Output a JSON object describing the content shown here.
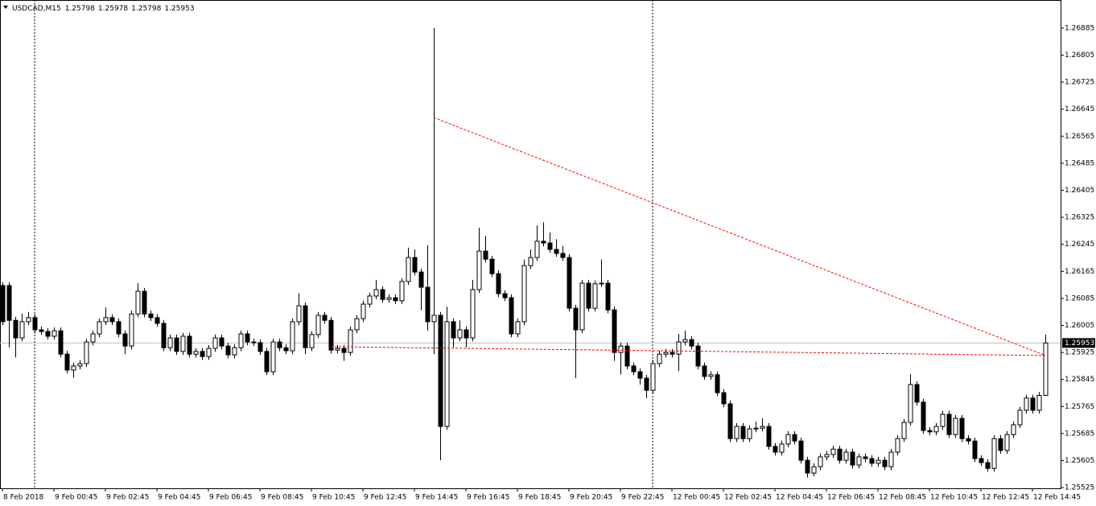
{
  "chart_data": {
    "type": "candlestick",
    "title": "USDCAD,M15",
    "up_color": "#ffffff",
    "down_color": "#000000",
    "edge_color": "#000000",
    "trend_color": "#ff0000",
    "separator_color": "#000000",
    "xlim": [
      -0.375,
      164.375
    ],
    "ylim": [
      1.25523,
      1.26968
    ],
    "yticks": [
      1.26885,
      1.26805,
      1.26725,
      1.26645,
      1.26565,
      1.26485,
      1.26405,
      1.26325,
      1.26245,
      1.26165,
      1.26085,
      1.26005,
      1.25925,
      1.25845,
      1.25765,
      1.25685,
      1.25605,
      1.25525
    ],
    "xticks": [
      {
        "value": 0,
        "label": "8 Feb 2018"
      },
      {
        "value": 8,
        "label": "9 Feb 00:45"
      },
      {
        "value": 16,
        "label": "9 Feb 02:45"
      },
      {
        "value": 24,
        "label": "9 Feb 04:45"
      },
      {
        "value": 32,
        "label": "9 Feb 06:45"
      },
      {
        "value": 40,
        "label": "9 Feb 08:45"
      },
      {
        "value": 48,
        "label": "9 Feb 10:45"
      },
      {
        "value": 56,
        "label": "9 Feb 12:45"
      },
      {
        "value": 64,
        "label": "9 Feb 14:45"
      },
      {
        "value": 72,
        "label": "9 Feb 16:45"
      },
      {
        "value": 80,
        "label": "9 Feb 18:45"
      },
      {
        "value": 88,
        "label": "9 Feb 20:45"
      },
      {
        "value": 96,
        "label": "9 Feb 22:45"
      },
      {
        "value": 104,
        "label": "12 Feb 00:45"
      },
      {
        "value": 112,
        "label": "12 Feb 02:45"
      },
      {
        "value": 120,
        "label": "12 Feb 04:45"
      },
      {
        "value": 128,
        "label": "12 Feb 06:45"
      },
      {
        "value": 136,
        "label": "12 Feb 08:45"
      },
      {
        "value": 144,
        "label": "12 Feb 10:45"
      },
      {
        "value": 152,
        "label": "12 Feb 12:45"
      },
      {
        "value": 160,
        "label": "12 Feb 14:45"
      }
    ],
    "separators": [
      5,
      101
    ],
    "trendlines": [
      {
        "points": [
          [
            67,
            1.2662
          ],
          [
            162,
            1.25916
          ]
        ]
      },
      {
        "points": [
          [
            51,
            1.25942
          ],
          [
            162,
            1.25916
          ]
        ]
      }
    ],
    "candles": [
      [
        1.26123,
        1.26133,
        1.26006,
        1.26016
      ],
      [
        1.26123,
        1.26133,
        1.2594,
        1.2602
      ],
      [
        1.2602,
        1.2603,
        1.2591,
        1.25968
      ],
      [
        1.25968,
        1.2604,
        1.25958,
        1.26016
      ],
      [
        1.26016,
        1.26045,
        1.26006,
        1.26028
      ],
      [
        1.26028,
        1.26038,
        1.25982,
        1.25992
      ],
      [
        1.25992,
        1.26002,
        1.25977,
        1.25987
      ],
      [
        1.25987,
        1.25997,
        1.25963,
        1.25973
      ],
      [
        1.25973,
        1.25999,
        1.25963,
        1.25989
      ],
      [
        1.25989,
        1.25999,
        1.2591,
        1.2592
      ],
      [
        1.2592,
        1.2593,
        1.25863,
        1.25873
      ],
      [
        1.25873,
        1.25895,
        1.2585,
        1.25885
      ],
      [
        1.25885,
        1.25902,
        1.25875,
        1.25892
      ],
      [
        1.25892,
        1.25966,
        1.25882,
        1.25956
      ],
      [
        1.25956,
        1.2599,
        1.25946,
        1.2598
      ],
      [
        1.2598,
        1.26026,
        1.2597,
        1.26016
      ],
      [
        1.26016,
        1.26058,
        1.26006,
        1.26028
      ],
      [
        1.26028,
        1.26038,
        1.26006,
        1.26016
      ],
      [
        1.26016,
        1.26026,
        1.2597,
        1.2598
      ],
      [
        1.2598,
        1.2599,
        1.2592,
        1.25944
      ],
      [
        1.25944,
        1.26049,
        1.25934,
        1.26039
      ],
      [
        1.26039,
        1.2613,
        1.26029,
        1.26106
      ],
      [
        1.26106,
        1.26116,
        1.26029,
        1.26039
      ],
      [
        1.26039,
        1.26049,
        1.26018,
        1.26028
      ],
      [
        1.26028,
        1.26038,
        1.26001,
        1.26011
      ],
      [
        1.26011,
        1.26021,
        1.25929,
        1.25939
      ],
      [
        1.25939,
        1.25978,
        1.25929,
        1.25968
      ],
      [
        1.25968,
        1.25978,
        1.25918,
        1.25928
      ],
      [
        1.25928,
        1.25983,
        1.25918,
        1.25973
      ],
      [
        1.25973,
        1.25983,
        1.2591,
        1.2592
      ],
      [
        1.2592,
        1.25938,
        1.2591,
        1.25928
      ],
      [
        1.25928,
        1.25938,
        1.25903,
        1.25913
      ],
      [
        1.25913,
        1.25947,
        1.25903,
        1.25937
      ],
      [
        1.25937,
        1.25978,
        1.25927,
        1.25968
      ],
      [
        1.25968,
        1.25978,
        1.25934,
        1.25944
      ],
      [
        1.25944,
        1.25954,
        1.25908,
        1.25918
      ],
      [
        1.25918,
        1.25949,
        1.25908,
        1.25939
      ],
      [
        1.25939,
        1.2599,
        1.25929,
        1.2598
      ],
      [
        1.2598,
        1.2599,
        1.25946,
        1.25956
      ],
      [
        1.25956,
        1.25966,
        1.25944,
        1.25954
      ],
      [
        1.25954,
        1.25964,
        1.25918,
        1.25928
      ],
      [
        1.25928,
        1.25938,
        1.25858,
        1.25868
      ],
      [
        1.25868,
        1.25966,
        1.25858,
        1.25956
      ],
      [
        1.25956,
        1.25966,
        1.25929,
        1.25939
      ],
      [
        1.25939,
        1.25949,
        1.2592,
        1.2593
      ],
      [
        1.2593,
        1.26026,
        1.2592,
        1.26016
      ],
      [
        1.26016,
        1.261,
        1.26006,
        1.26063
      ],
      [
        1.26063,
        1.26073,
        1.2592,
        1.25939
      ],
      [
        1.25939,
        1.25988,
        1.25929,
        1.25978
      ],
      [
        1.25978,
        1.26045,
        1.25968,
        1.26035
      ],
      [
        1.26035,
        1.26045,
        1.2601,
        1.2602
      ],
      [
        1.2602,
        1.2603,
        1.25922,
        1.25932
      ],
      [
        1.25932,
        1.25947,
        1.25922,
        1.25937
      ],
      [
        1.25937,
        1.25947,
        1.259,
        1.25925
      ],
      [
        1.25925,
        1.26002,
        1.25915,
        1.25992
      ],
      [
        1.25992,
        1.26035,
        1.25982,
        1.26025
      ],
      [
        1.26025,
        1.26078,
        1.26015,
        1.26068
      ],
      [
        1.26068,
        1.26102,
        1.26058,
        1.26092
      ],
      [
        1.26092,
        1.2614,
        1.26082,
        1.26111
      ],
      [
        1.26111,
        1.26121,
        1.26072,
        1.26082
      ],
      [
        1.26082,
        1.26097,
        1.26072,
        1.26087
      ],
      [
        1.26087,
        1.26097,
        1.26068,
        1.26078
      ],
      [
        1.26078,
        1.26145,
        1.26068,
        1.26135
      ],
      [
        1.26135,
        1.26235,
        1.26125,
        1.26206
      ],
      [
        1.26206,
        1.2623,
        1.26153,
        1.26163
      ],
      [
        1.26163,
        1.26173,
        1.2605,
        1.26118
      ],
      [
        1.26118,
        1.26242,
        1.2599,
        1.26016
      ],
      [
        1.26016,
        1.26885,
        1.2592,
        1.26035
      ],
      [
        1.26035,
        1.26045,
        1.25606,
        1.25706
      ],
      [
        1.25706,
        1.2606,
        1.25696,
        1.26016
      ],
      [
        1.26016,
        1.26026,
        1.2594,
        1.25968
      ],
      [
        1.25968,
        1.2602,
        1.25958,
        1.25992
      ],
      [
        1.25992,
        1.26002,
        1.2594,
        1.25968
      ],
      [
        1.25968,
        1.2614,
        1.25958,
        1.26111
      ],
      [
        1.26111,
        1.26294,
        1.26101,
        1.26225
      ],
      [
        1.26225,
        1.2627,
        1.26191,
        1.26201
      ],
      [
        1.26201,
        1.26211,
        1.26148,
        1.26158
      ],
      [
        1.26158,
        1.26168,
        1.26089,
        1.26099
      ],
      [
        1.26099,
        1.26109,
        1.26077,
        1.26087
      ],
      [
        1.26087,
        1.26097,
        1.2597,
        1.2598
      ],
      [
        1.2598,
        1.26026,
        1.2597,
        1.26016
      ],
      [
        1.26016,
        1.262,
        1.26006,
        1.26182
      ],
      [
        1.26182,
        1.2623,
        1.26172,
        1.26206
      ],
      [
        1.26206,
        1.26301,
        1.26196,
        1.26254
      ],
      [
        1.26254,
        1.2631,
        1.26239,
        1.26249
      ],
      [
        1.26249,
        1.2628,
        1.2622,
        1.2623
      ],
      [
        1.2623,
        1.2626,
        1.26208,
        1.26218
      ],
      [
        1.26218,
        1.2624,
        1.26196,
        1.26206
      ],
      [
        1.26206,
        1.26216,
        1.26046,
        1.26056
      ],
      [
        1.26056,
        1.26066,
        1.25849,
        1.25992
      ],
      [
        1.25992,
        1.2614,
        1.25982,
        1.2613
      ],
      [
        1.2613,
        1.2614,
        1.26046,
        1.26056
      ],
      [
        1.26056,
        1.26138,
        1.26046,
        1.26128
      ],
      [
        1.26128,
        1.262,
        1.26118,
        1.2613
      ],
      [
        1.2613,
        1.2614,
        1.26041,
        1.26051
      ],
      [
        1.26051,
        1.26061,
        1.259,
        1.25925
      ],
      [
        1.25925,
        1.25954,
        1.2586,
        1.25944
      ],
      [
        1.25944,
        1.25954,
        1.25875,
        1.25885
      ],
      [
        1.25885,
        1.25895,
        1.25858,
        1.25868
      ],
      [
        1.25868,
        1.25878,
        1.2583,
        1.25849
      ],
      [
        1.25849,
        1.25859,
        1.2579,
        1.25813
      ],
      [
        1.25813,
        1.25902,
        1.25803,
        1.25892
      ],
      [
        1.25892,
        1.2593,
        1.25882,
        1.2592
      ],
      [
        1.2592,
        1.25935,
        1.2591,
        1.25925
      ],
      [
        1.25925,
        1.25935,
        1.2591,
        1.2592
      ],
      [
        1.2592,
        1.2598,
        1.2587,
        1.25956
      ],
      [
        1.25956,
        1.2599,
        1.25946,
        1.25963
      ],
      [
        1.25963,
        1.25973,
        1.25934,
        1.25944
      ],
      [
        1.25944,
        1.25954,
        1.25875,
        1.25885
      ],
      [
        1.25885,
        1.25895,
        1.25844,
        1.25854
      ],
      [
        1.25854,
        1.25869,
        1.25844,
        1.25859
      ],
      [
        1.25859,
        1.25869,
        1.25796,
        1.25806
      ],
      [
        1.25806,
        1.25816,
        1.25763,
        1.25773
      ],
      [
        1.25773,
        1.25783,
        1.2566,
        1.2567
      ],
      [
        1.2567,
        1.25716,
        1.2566,
        1.25706
      ],
      [
        1.25706,
        1.25716,
        1.2566,
        1.2567
      ],
      [
        1.2567,
        1.25709,
        1.2566,
        1.25699
      ],
      [
        1.25699,
        1.2572,
        1.25689,
        1.25701
      ],
      [
        1.25701,
        1.2573,
        1.25691,
        1.25706
      ],
      [
        1.25706,
        1.25716,
        1.25637,
        1.25647
      ],
      [
        1.25647,
        1.25657,
        1.2562,
        1.2563
      ],
      [
        1.2563,
        1.25664,
        1.2562,
        1.25654
      ],
      [
        1.25654,
        1.25692,
        1.25644,
        1.25682
      ],
      [
        1.25682,
        1.25692,
        1.25653,
        1.25663
      ],
      [
        1.25663,
        1.25673,
        1.25596,
        1.25606
      ],
      [
        1.25606,
        1.25616,
        1.25555,
        1.25568
      ],
      [
        1.25568,
        1.25597,
        1.25558,
        1.25587
      ],
      [
        1.25587,
        1.25626,
        1.25577,
        1.25616
      ],
      [
        1.25616,
        1.25633,
        1.25606,
        1.25623
      ],
      [
        1.25623,
        1.25649,
        1.25613,
        1.25639
      ],
      [
        1.25639,
        1.25649,
        1.25596,
        1.25606
      ],
      [
        1.25606,
        1.2564,
        1.25596,
        1.2563
      ],
      [
        1.2563,
        1.2564,
        1.25582,
        1.25592
      ],
      [
        1.25592,
        1.25626,
        1.25582,
        1.25616
      ],
      [
        1.25616,
        1.25626,
        1.25601,
        1.25611
      ],
      [
        1.25611,
        1.25621,
        1.25587,
        1.25597
      ],
      [
        1.25597,
        1.25616,
        1.25587,
        1.25606
      ],
      [
        1.25606,
        1.25616,
        1.25577,
        1.25587
      ],
      [
        1.25587,
        1.2564,
        1.25577,
        1.2563
      ],
      [
        1.2563,
        1.2568,
        1.2562,
        1.2567
      ],
      [
        1.2567,
        1.25728,
        1.2566,
        1.25718
      ],
      [
        1.25718,
        1.25861,
        1.25708,
        1.2583
      ],
      [
        1.2583,
        1.2584,
        1.25768,
        1.25778
      ],
      [
        1.25778,
        1.25788,
        1.25684,
        1.25694
      ],
      [
        1.25694,
        1.25704,
        1.2568,
        1.2569
      ],
      [
        1.2569,
        1.25716,
        1.2568,
        1.25706
      ],
      [
        1.25706,
        1.25752,
        1.25696,
        1.25742
      ],
      [
        1.25742,
        1.25752,
        1.25672,
        1.25682
      ],
      [
        1.25682,
        1.2574,
        1.25672,
        1.2573
      ],
      [
        1.2573,
        1.2574,
        1.2566,
        1.2567
      ],
      [
        1.2567,
        1.2568,
        1.25653,
        1.25663
      ],
      [
        1.25663,
        1.25673,
        1.25601,
        1.25611
      ],
      [
        1.25611,
        1.25621,
        1.25589,
        1.25599
      ],
      [
        1.25599,
        1.25609,
        1.25572,
        1.25582
      ],
      [
        1.25582,
        1.2568,
        1.25572,
        1.2567
      ],
      [
        1.2567,
        1.2568,
        1.25625,
        1.25635
      ],
      [
        1.25635,
        1.25692,
        1.25625,
        1.25682
      ],
      [
        1.25682,
        1.25721,
        1.25672,
        1.25711
      ],
      [
        1.25711,
        1.25764,
        1.25701,
        1.25754
      ],
      [
        1.25754,
        1.258,
        1.25744,
        1.2579
      ],
      [
        1.2579,
        1.258,
        1.25744,
        1.25754
      ],
      [
        1.25754,
        1.25808,
        1.25744,
        1.25798
      ],
      [
        1.25798,
        1.25978,
        1.25798,
        1.25953
      ]
    ]
  }
}
